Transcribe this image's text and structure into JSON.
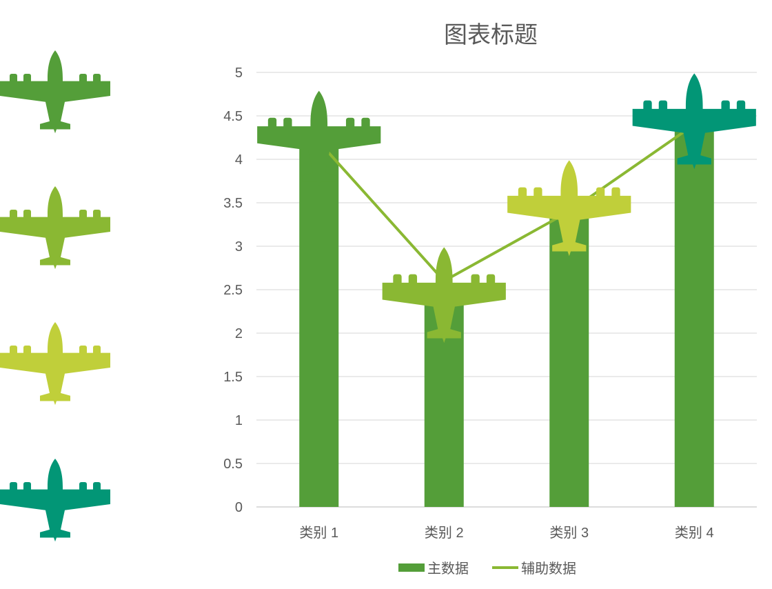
{
  "chart_data": {
    "type": "bar",
    "title": "图表标题",
    "categories": [
      "类别 1",
      "类别 2",
      "类别 3",
      "类别 4"
    ],
    "series": [
      {
        "name": "主数据",
        "kind": "bar",
        "values": [
          4.3,
          2.5,
          3.5,
          4.5
        ],
        "color": "#549E39"
      },
      {
        "name": "辅助数据",
        "kind": "line",
        "values": [
          4.2,
          2.6,
          3.4,
          4.4
        ],
        "color": "#8AB833"
      }
    ],
    "marker_colors": [
      "#549E39",
      "#8AB833",
      "#C0CF3A",
      "#029676"
    ],
    "ylim": [
      0,
      5
    ],
    "yticks": [
      "0",
      "0.5",
      "1",
      "1.5",
      "2",
      "2.5",
      "3",
      "3.5",
      "4",
      "4.5",
      "5"
    ],
    "grid": true,
    "legend": "bottom",
    "xlabel": "",
    "ylabel": ""
  }
}
